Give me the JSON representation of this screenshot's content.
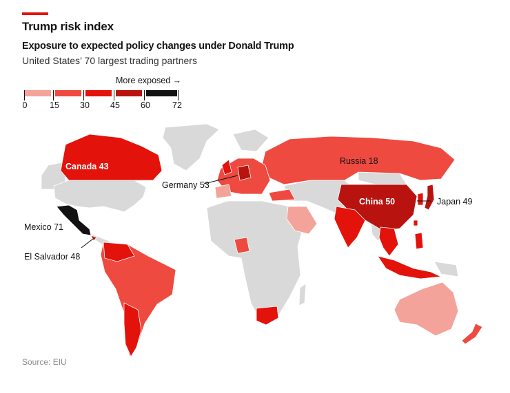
{
  "header": {
    "title": "Trump risk index",
    "subtitle": "Exposure to expected policy changes under Donald Trump",
    "subsubtitle": "United States’ 70 largest trading partners"
  },
  "legend": {
    "caption": "More exposed →",
    "ticks": [
      "0",
      "15",
      "30",
      "45",
      "60",
      "72"
    ],
    "bins": [
      {
        "from": 0,
        "to": 15,
        "color": "#f4a39a"
      },
      {
        "from": 15,
        "to": 30,
        "color": "#ee4a40"
      },
      {
        "from": 30,
        "to": 45,
        "color": "#e3120b"
      },
      {
        "from": 45,
        "to": 60,
        "color": "#b8130f"
      },
      {
        "from": 60,
        "to": 72,
        "color": "#121212"
      }
    ]
  },
  "map": {
    "base_color": "#d9d9d9",
    "labels": {
      "canada": "Canada 43",
      "russia": "Russia 18",
      "germany": "Germany 53",
      "china": "China 50",
      "japan": "Japan 49",
      "mexico": "Mexico 71",
      "el_salvador": "El Salvador 48"
    },
    "countries": [
      {
        "name": "Canada",
        "score": 43
      },
      {
        "name": "Russia",
        "score": 18
      },
      {
        "name": "Germany",
        "score": 53
      },
      {
        "name": "China",
        "score": 50
      },
      {
        "name": "Japan",
        "score": 49
      },
      {
        "name": "Mexico",
        "score": 71
      },
      {
        "name": "El Salvador",
        "score": 48
      }
    ]
  },
  "footer": {
    "source": "Source: EIU"
  }
}
